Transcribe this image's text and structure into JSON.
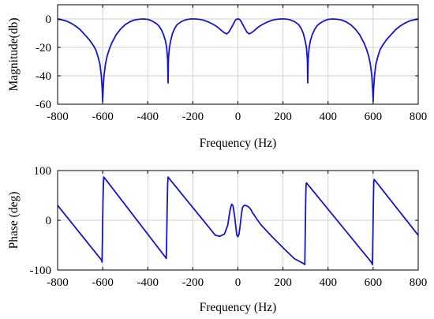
{
  "chart_data": [
    {
      "type": "line",
      "xlabel": "Frequency (Hz)",
      "ylabel": "Magnitude(db)",
      "xlim": [
        -800,
        800
      ],
      "ylim": [
        -60,
        10
      ],
      "xticks": [
        "-800",
        "-600",
        "-400",
        "-200",
        "0",
        "200",
        "400",
        "600",
        "800"
      ],
      "yticks": [
        "0",
        "-20",
        "-40",
        "-60"
      ],
      "grid": true,
      "line_color": "#1414d2",
      "x": [
        -800,
        -780,
        -760,
        -740,
        -720,
        -700,
        -680,
        -660,
        -640,
        -630,
        -620,
        -612,
        -606,
        -602,
        -600,
        -598,
        -594,
        -588,
        -580,
        -570,
        -560,
        -540,
        -520,
        -500,
        -480,
        -460,
        -440,
        -420,
        -400,
        -380,
        -360,
        -350,
        -340,
        -330,
        -322,
        -316,
        -312,
        -310,
        -308,
        -304,
        -298,
        -290,
        -280,
        -270,
        -250,
        -230,
        -210,
        -190,
        -170,
        -150,
        -130,
        -110,
        -90,
        -70,
        -60,
        -50,
        -40,
        -30,
        -20,
        -15,
        -10,
        -5,
        0,
        5,
        10,
        15,
        20,
        30,
        40,
        50,
        60,
        70,
        90,
        110,
        130,
        150,
        170,
        190,
        210,
        230,
        250,
        270,
        280,
        290,
        298,
        304,
        308,
        310,
        312,
        316,
        322,
        330,
        340,
        350,
        360,
        380,
        400,
        420,
        440,
        460,
        480,
        500,
        520,
        540,
        560,
        570,
        580,
        588,
        594,
        598,
        600,
        602,
        606,
        612,
        620,
        630,
        640,
        660,
        680,
        700,
        720,
        740,
        760,
        780,
        800
      ],
      "y": [
        -0.1,
        -0.6,
        -1.5,
        -3,
        -5,
        -7.5,
        -11,
        -14.5,
        -19,
        -22,
        -27,
        -32,
        -40,
        -50,
        -58,
        -50,
        -40,
        -32,
        -26,
        -21,
        -17,
        -11,
        -7,
        -4,
        -2,
        -0.8,
        -0.2,
        0,
        -0.3,
        -1.5,
        -3.5,
        -5,
        -7.5,
        -11,
        -15,
        -20,
        -28,
        -45,
        -28,
        -20,
        -15,
        -10,
        -6.5,
        -4,
        -1.8,
        -0.5,
        0,
        0,
        -0.3,
        -1,
        -2.2,
        -3.8,
        -5.8,
        -8.5,
        -9.8,
        -10.5,
        -9.2,
        -6.5,
        -3.5,
        -2,
        -0.7,
        -0.1,
        0,
        -0.1,
        -0.7,
        -2,
        -3.5,
        -6.5,
        -9.2,
        -10.5,
        -9.8,
        -8.5,
        -5.8,
        -3.8,
        -2.2,
        -1,
        -0.3,
        0,
        0,
        -0.5,
        -1.8,
        -4,
        -6.5,
        -10,
        -15,
        -20,
        -28,
        -45,
        -28,
        -20,
        -15,
        -11,
        -7.5,
        -5,
        -3.5,
        -1.5,
        -0.3,
        0,
        -0.2,
        -0.8,
        -2,
        -4,
        -7,
        -11,
        -17,
        -21,
        -26,
        -32,
        -40,
        -50,
        -58,
        -50,
        -40,
        -32,
        -27,
        -22,
        -19,
        -14.5,
        -11,
        -7.5,
        -5,
        -3,
        -1.5,
        -0.6,
        -0.1
      ]
    },
    {
      "type": "line",
      "xlabel": "Frequency (Hz)",
      "ylabel": "Phase (deg)",
      "xlim": [
        -800,
        800
      ],
      "ylim": [
        -100,
        100
      ],
      "xticks": [
        "-800",
        "-600",
        "-400",
        "-200",
        "0",
        "200",
        "400",
        "600",
        "800"
      ],
      "yticks": [
        "100",
        "0",
        "-100"
      ],
      "grid": true,
      "line_color": "#1414d2",
      "x": [
        -800,
        -605,
        -603,
        -601,
        -599,
        -597,
        -595,
        -320,
        -318,
        -316,
        -314,
        -312,
        -310,
        -305,
        -100,
        -80,
        -60,
        -45,
        -35,
        -28,
        -22,
        -15,
        -10,
        -5,
        0,
        5,
        10,
        15,
        20,
        25,
        30,
        40,
        50,
        55,
        60,
        65,
        70,
        80,
        100,
        150,
        200,
        250,
        295,
        297,
        299,
        301,
        303,
        305,
        590,
        595,
        597,
        599,
        601,
        603,
        605,
        800
      ],
      "y": [
        30,
        -80,
        -84,
        -40,
        30,
        70,
        87,
        -75,
        -77,
        -40,
        20,
        70,
        87,
        84,
        -30,
        -32,
        -28,
        -10,
        20,
        32,
        30,
        10,
        -10,
        -30,
        -33,
        -28,
        -10,
        10,
        25,
        29,
        30,
        29,
        26,
        23,
        20,
        15,
        12,
        5,
        -8,
        -32,
        -55,
        -77,
        -88,
        -89,
        -20,
        50,
        74,
        75,
        -83,
        -87,
        -89,
        -30,
        40,
        78,
        82,
        -30
      ]
    }
  ]
}
